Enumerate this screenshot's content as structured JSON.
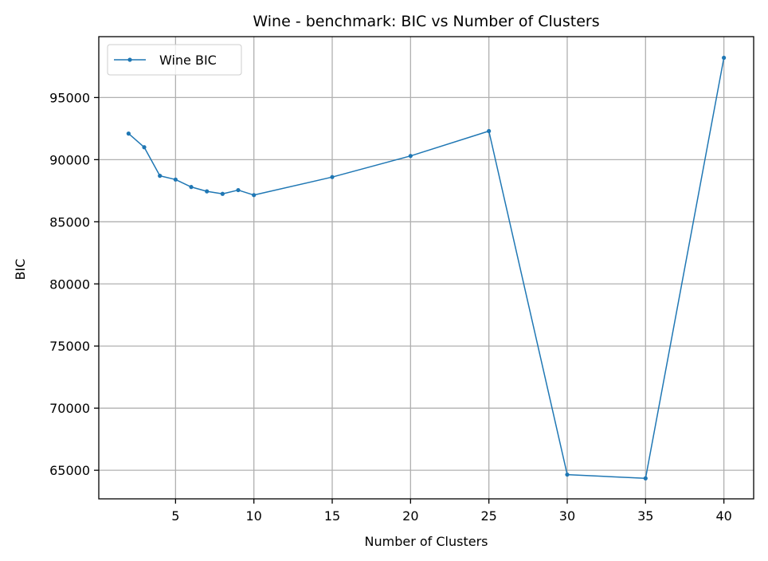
{
  "chart_data": {
    "type": "line",
    "title": "Wine - benchmark: BIC vs Number of Clusters",
    "xlabel": "Number of Clusters",
    "ylabel": "BIC",
    "xlim": [
      0.1,
      41.9
    ],
    "ylim": [
      62700,
      99900
    ],
    "xticks": [
      5,
      10,
      15,
      20,
      25,
      30,
      35,
      40
    ],
    "yticks": [
      65000,
      70000,
      75000,
      80000,
      85000,
      90000,
      95000
    ],
    "grid": true,
    "legend_position": "top-left",
    "series": [
      {
        "name": "Wine BIC",
        "color": "#1f77b4",
        "marker": "circle",
        "x": [
          2,
          3,
          4,
          5,
          6,
          7,
          8,
          9,
          10,
          15,
          20,
          25,
          30,
          35,
          40
        ],
        "y": [
          92100,
          91000,
          88700,
          88400,
          87800,
          87450,
          87250,
          87550,
          87150,
          88600,
          90300,
          92300,
          64650,
          64350,
          98200
        ]
      }
    ]
  }
}
